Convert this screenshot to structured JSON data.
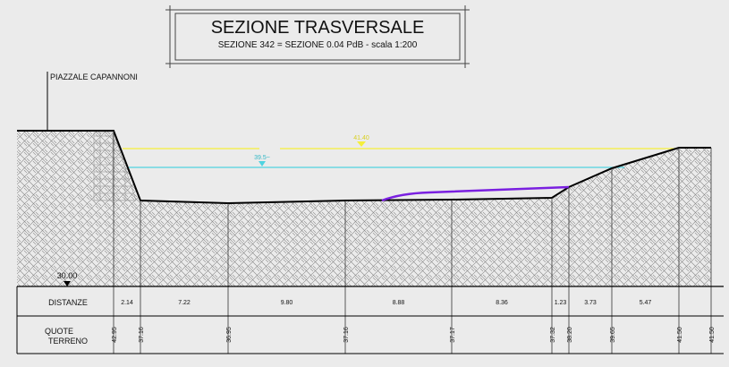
{
  "title": "SEZIONE TRASVERSALE",
  "subtitle": "SEZIONE 342 = SEZIONE 0.04 PdB - scala 1:200",
  "location_label": "PIAZZALE CAPANNONI",
  "reference_elevation": "30.00",
  "water_levels": [
    {
      "label": "41.40",
      "color": "#f5ef3a"
    },
    {
      "label": "39.5~",
      "color": "#4fd3e0"
    }
  ],
  "table": {
    "row1_label": "DISTANZE",
    "row2_label_line1": "QUOTE",
    "row2_label_line2": "TERRENO",
    "distances": [
      "2.14",
      "7.22",
      "9.80",
      "8.88",
      "8.36",
      "1.23",
      "3.73",
      "5.47"
    ],
    "elevations": [
      "42.95",
      "37.16",
      "36.95",
      "37.16",
      "37.17",
      "37.32",
      "38.20",
      "39.65",
      "41.50",
      "41.50"
    ]
  },
  "colors": {
    "background": "#ebebeb",
    "terrain_line": "#000000",
    "sediment_line": "#7a20e0",
    "hatch": "#777777"
  }
}
